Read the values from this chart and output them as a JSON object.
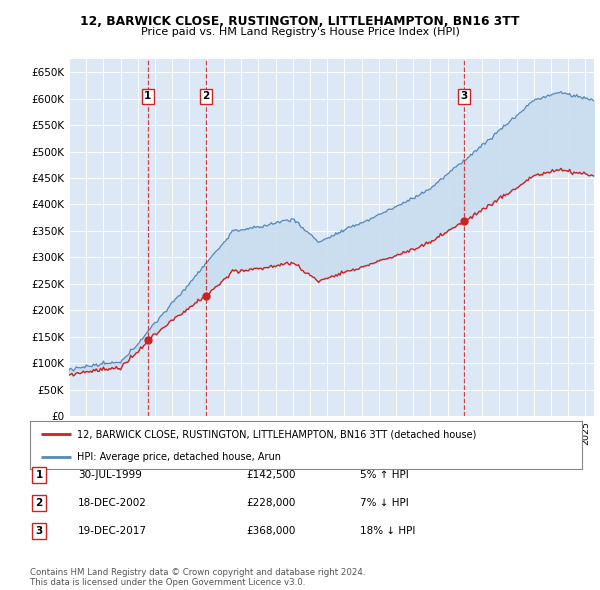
{
  "title": "12, BARWICK CLOSE, RUSTINGTON, LITTLEHAMPTON, BN16 3TT",
  "subtitle": "Price paid vs. HM Land Registry's House Price Index (HPI)",
  "yticks": [
    0,
    50000,
    100000,
    150000,
    200000,
    250000,
    300000,
    350000,
    400000,
    450000,
    500000,
    550000,
    600000,
    650000
  ],
  "ylim": [
    0,
    675000
  ],
  "xlim_start": 1995.0,
  "xlim_end": 2025.5,
  "background_color": "#ffffff",
  "plot_bg_color": "#dce8f5",
  "grid_color": "#ffffff",
  "hpi_color": "#5588bb",
  "price_color": "#cc2222",
  "fill_color": "#c8ddf0",
  "transactions": [
    {
      "num": 1,
      "date_label": "30-JUL-1999",
      "date_x": 1999.58,
      "price": 142500,
      "pct": "5% ↑ HPI"
    },
    {
      "num": 2,
      "date_label": "18-DEC-2002",
      "date_x": 2002.96,
      "price": 228000,
      "pct": "7% ↓ HPI"
    },
    {
      "num": 3,
      "date_label": "19-DEC-2017",
      "date_x": 2017.96,
      "price": 368000,
      "pct": "18% ↓ HPI"
    }
  ],
  "legend_label_red": "12, BARWICK CLOSE, RUSTINGTON, LITTLEHAMPTON, BN16 3TT (detached house)",
  "legend_label_blue": "HPI: Average price, detached house, Arun",
  "footnote": "Contains HM Land Registry data © Crown copyright and database right 2024.\nThis data is licensed under the Open Government Licence v3.0."
}
